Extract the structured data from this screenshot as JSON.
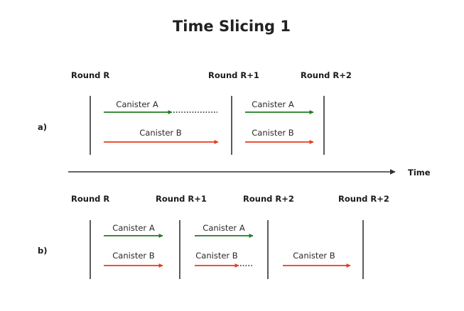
{
  "title": "Time Slicing 1",
  "time_label": "Time",
  "colors": {
    "green": "#1e7d1e",
    "red": "#e83a1e",
    "dots": "#222222",
    "text": "#1a1a1a"
  },
  "sections": [
    {
      "id": "a",
      "label": "a)",
      "rounds": [
        "Round R",
        "Round R+1",
        "Round R+2"
      ],
      "arrows": [
        {
          "label": "Canister A",
          "color": "green",
          "trailing_dots": true
        },
        {
          "label": "Canister B",
          "color": "red",
          "trailing_dots": false
        },
        {
          "label": "Canister A",
          "color": "green",
          "trailing_dots": false
        },
        {
          "label": "Canister B",
          "color": "red",
          "trailing_dots": false
        }
      ]
    },
    {
      "id": "b",
      "label": "b)",
      "rounds": [
        "Round R",
        "Round R+1",
        "Round R+2",
        "Round R+2"
      ],
      "arrows": [
        {
          "label": "Canister A",
          "color": "green",
          "trailing_dots": false
        },
        {
          "label": "Canister B",
          "color": "red",
          "trailing_dots": false
        },
        {
          "label": "Canister A",
          "color": "green",
          "trailing_dots": false
        },
        {
          "label": "Canister B",
          "color": "red",
          "trailing_dots": true
        },
        {
          "label": "Canister B",
          "color": "red",
          "trailing_dots": false
        }
      ]
    }
  ]
}
